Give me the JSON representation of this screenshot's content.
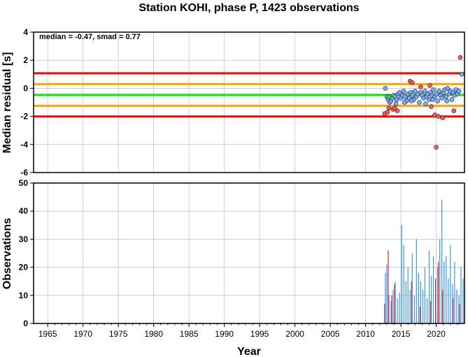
{
  "chart_data": [
    {
      "type": "scatter",
      "title": "Station KOHI, phase P, 1423 observations",
      "ylabel": "Median residual [s]",
      "ylim": [
        -6,
        4
      ],
      "xlim": [
        1963,
        2024
      ],
      "y_ticks": [
        "4",
        "2",
        "0",
        "-2",
        "-4",
        "-6"
      ],
      "annotation": "median = -0.47, smad = 0.77",
      "grid": true,
      "reference_lines": [
        {
          "y": 1.07,
          "color": "#ff0000"
        },
        {
          "y": 0.3,
          "color": "#ffa500"
        },
        {
          "y": -0.47,
          "color": "#00ee00"
        },
        {
          "y": -1.24,
          "color": "#ffa500"
        },
        {
          "y": -2.01,
          "color": "#ff0000"
        }
      ],
      "colors": {
        "inlier": "#77aaff",
        "outlier": "#ff5555",
        "first": "#33dd33"
      },
      "series": [
        {
          "points_inlier": [
            [
              2012.8,
              0.0
            ],
            [
              2013.0,
              -0.6
            ],
            [
              2013.2,
              -0.8
            ],
            [
              2013.4,
              -1.0
            ],
            [
              2013.6,
              -0.9
            ],
            [
              2013.8,
              -0.7
            ],
            [
              2014.0,
              -0.5
            ],
            [
              2014.2,
              -0.6
            ],
            [
              2014.4,
              -0.8
            ],
            [
              2014.6,
              -0.4
            ],
            [
              2014.8,
              -0.3
            ],
            [
              2015.0,
              -0.7
            ],
            [
              2015.2,
              -0.5
            ],
            [
              2015.4,
              -0.2
            ],
            [
              2015.6,
              -0.6
            ],
            [
              2015.8,
              -0.9
            ],
            [
              2016.0,
              -0.4
            ],
            [
              2016.2,
              -0.7
            ],
            [
              2016.4,
              -0.3
            ],
            [
              2016.6,
              -0.5
            ],
            [
              2016.8,
              -0.8
            ],
            [
              2017.0,
              -0.2
            ],
            [
              2017.2,
              -0.6
            ],
            [
              2017.4,
              -0.4
            ],
            [
              2017.6,
              -1.0
            ],
            [
              2017.8,
              -0.3
            ],
            [
              2018.0,
              -0.5
            ],
            [
              2018.2,
              -0.7
            ],
            [
              2018.4,
              -0.2
            ],
            [
              2018.6,
              -0.6
            ],
            [
              2018.8,
              -0.4
            ],
            [
              2019.0,
              -0.8
            ],
            [
              2019.2,
              -0.3
            ],
            [
              2019.4,
              -0.5
            ],
            [
              2019.6,
              -0.1
            ],
            [
              2019.8,
              -0.6
            ],
            [
              2020.0,
              -0.4
            ],
            [
              2020.2,
              -0.9
            ],
            [
              2020.4,
              -0.2
            ],
            [
              2020.6,
              -0.5
            ],
            [
              2020.8,
              -0.7
            ],
            [
              2021.0,
              -0.3
            ],
            [
              2021.2,
              -0.1
            ],
            [
              2021.4,
              -0.6
            ],
            [
              2021.6,
              0.0
            ],
            [
              2021.8,
              -0.4
            ],
            [
              2022.0,
              -0.2
            ],
            [
              2022.2,
              -0.8
            ],
            [
              2022.4,
              -0.3
            ],
            [
              2022.6,
              -0.5
            ],
            [
              2022.8,
              -0.1
            ],
            [
              2023.0,
              -0.4
            ],
            [
              2023.2,
              -0.2
            ],
            [
              2023.6,
              1.0
            ],
            [
              2014.3,
              -1.1
            ],
            [
              2015.5,
              -1.0
            ],
            [
              2016.5,
              -0.9
            ],
            [
              2018.5,
              -1.1
            ],
            [
              2019.5,
              -0.8
            ],
            [
              2021.5,
              -0.9
            ]
          ],
          "points_outlier": [
            [
              2012.7,
              -1.8
            ],
            [
              2013.1,
              -1.7
            ],
            [
              2013.3,
              -1.4
            ],
            [
              2013.9,
              -1.5
            ],
            [
              2014.1,
              -1.4
            ],
            [
              2014.5,
              -1.6
            ],
            [
              2016.3,
              0.5
            ],
            [
              2016.6,
              0.4
            ],
            [
              2017.8,
              0.1
            ],
            [
              2019.1,
              0.2
            ],
            [
              2019.3,
              -1.3
            ],
            [
              2019.8,
              -1.9
            ],
            [
              2020.0,
              -4.2
            ],
            [
              2020.3,
              -2.0
            ],
            [
              2020.9,
              -2.1
            ],
            [
              2022.5,
              -1.6
            ],
            [
              2023.4,
              2.2
            ]
          ],
          "points_first": [
            [
              2013.3,
              -0.6
            ]
          ]
        }
      ]
    },
    {
      "type": "bar",
      "ylabel": "Observations",
      "xlabel": "Year",
      "ylim": [
        0,
        50
      ],
      "xlim": [
        1963,
        2024
      ],
      "y_ticks": [
        "50",
        "40",
        "30",
        "20",
        "10",
        "0"
      ],
      "x_ticks": [
        "1965",
        "1970",
        "1975",
        "1980",
        "1985",
        "1990",
        "1995",
        "2000",
        "2005",
        "2010",
        "2015",
        "2020"
      ],
      "grid": true,
      "colors": {
        "total": "#3399ff",
        "outlier": "#dd2222"
      },
      "series": [
        {
          "name_key": "total",
          "x": [
            2012.8,
            2013.0,
            2013.3,
            2013.6,
            2013.9,
            2014.2,
            2014.5,
            2014.8,
            2015.1,
            2015.4,
            2015.7,
            2016.0,
            2016.3,
            2016.6,
            2016.9,
            2017.2,
            2017.5,
            2017.8,
            2018.1,
            2018.4,
            2018.7,
            2019.0,
            2019.3,
            2019.6,
            2019.9,
            2020.2,
            2020.5,
            2020.8,
            2021.1,
            2021.4,
            2021.7,
            2022.0,
            2022.3,
            2022.6,
            2022.9,
            2023.2,
            2023.5,
            2023.8
          ],
          "values": [
            18,
            21,
            10,
            8,
            12,
            15,
            9,
            11,
            35,
            28,
            15,
            20,
            12,
            25,
            10,
            30,
            18,
            15,
            12,
            20,
            9,
            26,
            17,
            24,
            14,
            20,
            30,
            44,
            22,
            24,
            16,
            28,
            14,
            22,
            12,
            10,
            20,
            16
          ]
        },
        {
          "name_key": "outlier",
          "x": [
            2012.7,
            2013.2,
            2013.7,
            2014.1,
            2016.5,
            2017.7,
            2019.2,
            2019.9,
            2020.3,
            2020.9,
            2022.4,
            2023.3
          ],
          "values": [
            7,
            26,
            10,
            14,
            15,
            6,
            8,
            16,
            22,
            12,
            9,
            7
          ]
        }
      ]
    }
  ]
}
